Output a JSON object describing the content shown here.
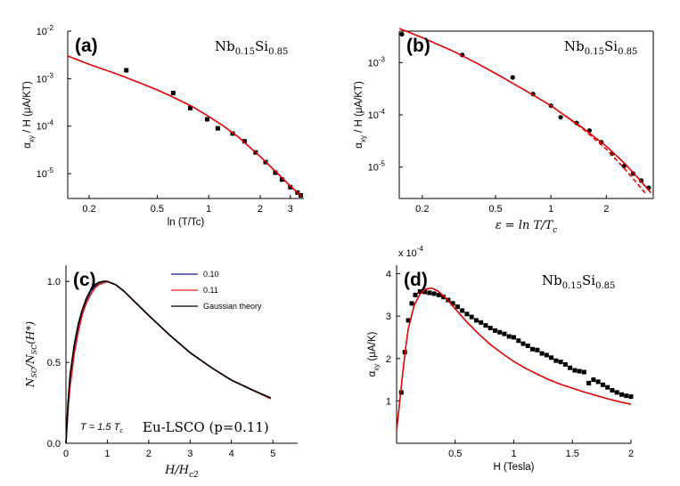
{
  "chart_data": [
    {
      "id": "a",
      "panel_label": "(a)",
      "type": "scatter",
      "annotation": {
        "base": "Nb",
        "sub1": "0.15",
        "mid": "Si",
        "sub2": "0.85"
      },
      "xlabel": "ln (T/Tc)",
      "ylabel": "α",
      "ylabel_sub": "xy",
      "ylabel_rest": " / H (μA/KT)",
      "xscale": "log",
      "yscale": "log",
      "xlim": [
        0.15,
        3.6
      ],
      "ylim": [
        3e-06,
        0.01
      ],
      "xticks": [
        {
          "v": 0.2,
          "t": "0.2"
        },
        {
          "v": 0.5,
          "t": "0.5"
        },
        {
          "v": 1,
          "t": "1"
        },
        {
          "v": 2,
          "t": "2"
        },
        {
          "v": 3,
          "t": "3"
        }
      ],
      "yticks": [
        {
          "v": 1e-05,
          "b": "10",
          "e": "-5"
        },
        {
          "v": 0.0001,
          "b": "10",
          "e": "-4"
        },
        {
          "v": 0.001,
          "b": "10",
          "e": "-3"
        },
        {
          "v": 0.01,
          "b": "10",
          "e": "-2"
        }
      ],
      "series": [
        {
          "kind": "points",
          "marker": "square",
          "color": "#000000",
          "x": [
            0.33,
            0.62,
            0.78,
            0.98,
            1.13,
            1.38,
            1.62,
            1.88,
            2.15,
            2.45,
            2.68,
            3.0,
            3.3,
            3.45
          ],
          "y": [
            0.0015,
            0.0005,
            0.00024,
            0.00014,
            9e-05,
            7e-05,
            4.8e-05,
            2.8e-05,
            1.75e-05,
            1.05e-05,
            7.5e-06,
            5.2e-06,
            4e-06,
            3.5e-06
          ]
        },
        {
          "kind": "line",
          "color": "#e00000",
          "x": [
            0.15,
            0.2,
            0.3,
            0.4,
            0.5,
            0.6,
            0.8,
            1.0,
            1.2,
            1.5,
            2.0,
            2.5,
            3.0,
            3.5
          ],
          "y": [
            0.003,
            0.002,
            0.0012,
            0.0008,
            0.00058,
            0.00043,
            0.00026,
            0.00016,
            0.000105,
            5.8e-05,
            2.3e-05,
            1.05e-05,
            5.5e-06,
            3.3e-06
          ]
        }
      ]
    },
    {
      "id": "b",
      "panel_label": "(b)",
      "type": "scatter",
      "annotation": {
        "base": "Nb",
        "sub1": "0.15",
        "mid": "Si",
        "sub2": "0.85"
      },
      "xlabel": "ε = ln T/T",
      "xlabel_sub": "c",
      "ylabel": "α",
      "ylabel_sub": "xy",
      "ylabel_rest": " / H (μA/KT)",
      "xscale": "log",
      "yscale": "log",
      "xlim": [
        0.15,
        3.6
      ],
      "ylim": [
        2.5e-06,
        0.004
      ],
      "xticks": [
        {
          "v": 0.2,
          "t": "0.2"
        },
        {
          "v": 0.5,
          "t": "0.5"
        },
        {
          "v": 1,
          "t": "1"
        },
        {
          "v": 2,
          "t": "2"
        }
      ],
      "yticks": [
        {
          "v": 1e-05,
          "b": "10",
          "e": "-5"
        },
        {
          "v": 0.0001,
          "b": "10",
          "e": "-4"
        },
        {
          "v": 0.001,
          "b": "10",
          "e": "-3"
        }
      ],
      "series": [
        {
          "kind": "points",
          "marker": "circle",
          "color": "#000000",
          "x": [
            0.155,
            0.33,
            0.62,
            0.8,
            1.0,
            1.13,
            1.38,
            1.62,
            1.88,
            2.15,
            2.5,
            2.8,
            3.1,
            3.4
          ],
          "y": [
            0.0035,
            0.0014,
            0.00052,
            0.00025,
            0.00015,
            9e-05,
            7e-05,
            5e-05,
            3e-05,
            1.8e-05,
            1.05e-05,
            7.5e-06,
            5.5e-06,
            4e-06
          ]
        },
        {
          "kind": "line",
          "color": "#e00000",
          "x": [
            0.15,
            0.2,
            0.3,
            0.4,
            0.5,
            0.6,
            0.8,
            1.0,
            1.2,
            1.5,
            2.0,
            2.5,
            3.0,
            3.5
          ],
          "y": [
            0.0045,
            0.003,
            0.0016,
            0.00095,
            0.00062,
            0.00043,
            0.00024,
            0.00015,
            9.5e-05,
            5.5e-05,
            2.5e-05,
            1.2e-05,
            6e-06,
            3.2e-06
          ]
        },
        {
          "kind": "line",
          "dash": true,
          "color": "#e00000",
          "x": [
            1.2,
            1.5,
            2.0,
            2.5,
            3.0,
            3.3
          ],
          "y": [
            9.5e-05,
            5.3e-05,
            2.2e-05,
            9.5e-06,
            4.5e-06,
            3e-06
          ]
        }
      ]
    },
    {
      "id": "c",
      "panel_label": "(c)",
      "type": "line",
      "xlabel": "H/H",
      "xlabel_sub": "c2",
      "ylabel": "N",
      "ylabel_sub": "SC",
      "ylabel_mid": "/N",
      "ylabel_sub2": "SC",
      "ylabel_end": "(H*)",
      "text_temp": "T = 1.5 T",
      "text_temp_sub": "c",
      "text_sample": "Eu-LSCO (p=0.11)",
      "xscale": "linear",
      "yscale": "linear",
      "xlim": [
        0,
        5.6
      ],
      "ylim": [
        0,
        1.1
      ],
      "xticks": [
        {
          "v": 0,
          "t": "0"
        },
        {
          "v": 1,
          "t": "1"
        },
        {
          "v": 2,
          "t": "2"
        },
        {
          "v": 3,
          "t": "3"
        },
        {
          "v": 4,
          "t": "4"
        },
        {
          "v": 5,
          "t": "5"
        }
      ],
      "yticks": [
        {
          "v": 0,
          "t": "0.0"
        },
        {
          "v": 0.5,
          "t": "0.5"
        },
        {
          "v": 1.0,
          "t": "1.0"
        }
      ],
      "series": [
        {
          "name": "0.10",
          "kind": "line",
          "color": "#1a1a8c",
          "x": [
            0,
            0.05,
            0.1,
            0.2,
            0.3,
            0.4,
            0.5,
            0.6,
            0.7,
            0.8,
            0.9,
            1.0,
            1.1,
            1.2,
            1.4,
            1.6,
            1.8,
            2.0,
            2.5,
            3.0,
            3.5,
            4.0,
            4.5,
            4.95
          ],
          "y": [
            0,
            0.22,
            0.38,
            0.58,
            0.72,
            0.82,
            0.89,
            0.94,
            0.97,
            0.99,
            1.0,
            1.0,
            0.99,
            0.98,
            0.94,
            0.89,
            0.84,
            0.79,
            0.67,
            0.56,
            0.47,
            0.39,
            0.33,
            0.28
          ]
        },
        {
          "name": "0.11",
          "kind": "line",
          "color": "#e02020",
          "x": [
            0,
            0.05,
            0.1,
            0.2,
            0.3,
            0.4,
            0.5,
            0.6,
            0.7,
            0.8,
            0.9,
            1.0,
            1.1,
            1.2,
            1.4,
            1.6,
            1.8,
            2.0,
            2.5,
            3.0,
            3.5,
            4.0,
            4.5,
            4.95
          ],
          "y": [
            0,
            0.2,
            0.35,
            0.55,
            0.69,
            0.8,
            0.87,
            0.92,
            0.96,
            0.98,
            0.99,
            1.0,
            0.99,
            0.98,
            0.94,
            0.89,
            0.84,
            0.79,
            0.67,
            0.56,
            0.47,
            0.39,
            0.33,
            0.275
          ]
        },
        {
          "name": "Gaussian theory",
          "kind": "line",
          "color": "#000000",
          "x": [
            0,
            0.05,
            0.1,
            0.2,
            0.3,
            0.4,
            0.5,
            0.6,
            0.7,
            0.8,
            0.9,
            1.0,
            1.1,
            1.2,
            1.4,
            1.6,
            1.8,
            2.0,
            2.5,
            3.0,
            3.5,
            4.0,
            4.5,
            4.95
          ],
          "y": [
            0,
            0.25,
            0.42,
            0.61,
            0.74,
            0.83,
            0.9,
            0.95,
            0.98,
            0.995,
            1.0,
            1.0,
            0.99,
            0.98,
            0.94,
            0.89,
            0.84,
            0.79,
            0.67,
            0.56,
            0.47,
            0.39,
            0.33,
            0.28
          ]
        }
      ]
    },
    {
      "id": "d",
      "panel_label": "(d)",
      "type": "scatter",
      "annotation": {
        "base": "Nb",
        "sub1": "0.15",
        "mid": "Si",
        "sub2": "0.85"
      },
      "xlabel": "H (Tesla)",
      "ylabel": "α",
      "ylabel_sub": "xy",
      "ylabel_rest": " (μA/K)",
      "exponent_base": "x 10",
      "exponent_power": "-4",
      "xscale": "linear",
      "yscale": "linear",
      "xlim": [
        0,
        2
      ],
      "ylim": [
        0,
        4.2
      ],
      "xticks": [
        {
          "v": 0.5,
          "t": "0.5"
        },
        {
          "v": 1,
          "t": "1"
        },
        {
          "v": 1.5,
          "t": "1.5"
        },
        {
          "v": 2,
          "t": "2"
        }
      ],
      "yticks": [
        {
          "v": 1,
          "t": "1"
        },
        {
          "v": 2,
          "t": "2"
        },
        {
          "v": 3,
          "t": "3"
        },
        {
          "v": 4,
          "t": "4"
        }
      ],
      "series": [
        {
          "kind": "points",
          "marker": "square",
          "color": "#000000",
          "x": [
            0.04,
            0.07,
            0.1,
            0.13,
            0.16,
            0.2,
            0.24,
            0.28,
            0.32,
            0.36,
            0.4,
            0.44,
            0.48,
            0.52,
            0.56,
            0.6,
            0.64,
            0.68,
            0.72,
            0.76,
            0.8,
            0.84,
            0.88,
            0.92,
            0.96,
            1.0,
            1.04,
            1.08,
            1.12,
            1.16,
            1.2,
            1.24,
            1.28,
            1.32,
            1.36,
            1.4,
            1.44,
            1.48,
            1.52,
            1.56,
            1.6,
            1.64,
            1.68,
            1.72,
            1.76,
            1.8,
            1.84,
            1.88,
            1.92,
            1.96,
            2.0
          ],
          "y": [
            1.2,
            2.15,
            2.9,
            3.3,
            3.5,
            3.58,
            3.57,
            3.55,
            3.53,
            3.5,
            3.45,
            3.38,
            3.3,
            3.22,
            3.13,
            3.05,
            2.98,
            2.9,
            2.85,
            2.78,
            2.72,
            2.66,
            2.62,
            2.58,
            2.52,
            2.5,
            2.42,
            2.35,
            2.3,
            2.22,
            2.2,
            2.12,
            2.08,
            2.02,
            1.95,
            1.92,
            1.86,
            1.78,
            1.72,
            1.7,
            1.68,
            1.42,
            1.5,
            1.45,
            1.38,
            1.32,
            1.25,
            1.2,
            1.15,
            1.12,
            1.1
          ]
        },
        {
          "kind": "line",
          "color": "#e00000",
          "x": [
            0,
            0.02,
            0.05,
            0.08,
            0.1,
            0.15,
            0.2,
            0.25,
            0.3,
            0.35,
            0.4,
            0.45,
            0.5,
            0.6,
            0.7,
            0.8,
            0.9,
            1.0,
            1.1,
            1.2,
            1.3,
            1.4,
            1.5,
            1.6,
            1.7,
            1.8,
            1.9,
            2.0
          ],
          "y": [
            0.3,
            0.8,
            1.6,
            2.3,
            2.7,
            3.25,
            3.52,
            3.64,
            3.66,
            3.6,
            3.48,
            3.33,
            3.17,
            2.86,
            2.58,
            2.33,
            2.12,
            1.93,
            1.77,
            1.63,
            1.5,
            1.39,
            1.3,
            1.21,
            1.13,
            1.05,
            0.98,
            0.92
          ]
        }
      ]
    }
  ]
}
